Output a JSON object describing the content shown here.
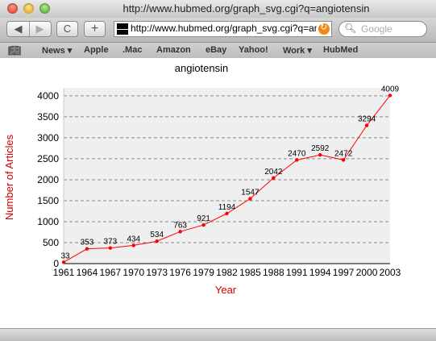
{
  "window": {
    "title": "http://www.hubmed.org/graph_svg.cgi?q=angiotensin"
  },
  "toolbar": {
    "back_icon": "◀",
    "forward_icon": "▶",
    "reload_icon": "C",
    "add_icon": "+",
    "url": "http://www.hubmed.org/graph_svg.cgi?q=angiotensin",
    "search_placeholder": "Google"
  },
  "bookmarks": [
    {
      "label": "News ▾"
    },
    {
      "label": "Apple"
    },
    {
      "label": ".Mac"
    },
    {
      "label": "Amazon"
    },
    {
      "label": "eBay"
    },
    {
      "label": "Yahoo!"
    },
    {
      "label": "Work ▾"
    },
    {
      "label": "HubMed"
    }
  ],
  "chart_data": {
    "type": "line",
    "title": "angiotensin",
    "xlabel": "Year",
    "ylabel": "Number of Articles",
    "x": [
      1961,
      1964,
      1967,
      1970,
      1973,
      1976,
      1979,
      1982,
      1985,
      1988,
      1991,
      1994,
      1997,
      2000,
      2003
    ],
    "values": [
      33,
      353,
      373,
      434,
      534,
      763,
      921,
      1194,
      1547,
      2042,
      2470,
      2592,
      2472,
      3294,
      4009
    ],
    "yticks": [
      0,
      500,
      1000,
      1500,
      2000,
      2500,
      3000,
      3500,
      4000
    ],
    "ylim": [
      0,
      4000
    ],
    "grid": true,
    "line_color": "#ff0000",
    "ylabel_color": "#cc0000"
  }
}
